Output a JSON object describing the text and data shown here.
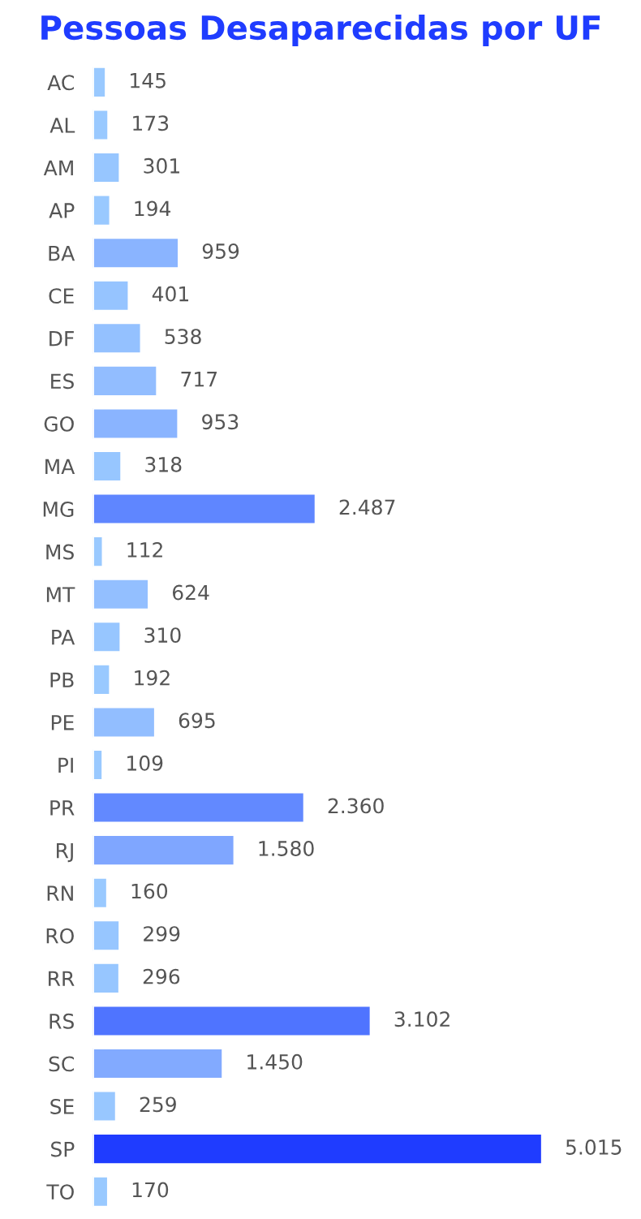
{
  "chart_data": {
    "type": "bar",
    "orientation": "horizontal",
    "title": "Pessoas Desaparecidas por UF",
    "categories": [
      "AC",
      "AL",
      "AM",
      "AP",
      "BA",
      "CE",
      "DF",
      "ES",
      "GO",
      "MA",
      "MG",
      "MS",
      "MT",
      "PA",
      "PB",
      "PE",
      "PI",
      "PR",
      "RJ",
      "RN",
      "RO",
      "RR",
      "RS",
      "SC",
      "SE",
      "SP",
      "TO"
    ],
    "values": [
      145,
      173,
      301,
      194,
      959,
      401,
      538,
      717,
      953,
      318,
      2487,
      112,
      624,
      310,
      192,
      695,
      109,
      2360,
      1580,
      160,
      299,
      296,
      3102,
      1450,
      259,
      5015,
      170
    ],
    "value_labels": [
      "145",
      "173",
      "301",
      "194",
      "959",
      "401",
      "538",
      "717",
      "953",
      "318",
      "2.487",
      "112",
      "624",
      "310",
      "192",
      "695",
      "109",
      "2.360",
      "1.580",
      "160",
      "299",
      "296",
      "3.102",
      "1.450",
      "259",
      "5.015",
      "170"
    ],
    "colors": [
      "#99c9ff",
      "#99c9ff",
      "#97c6ff",
      "#99c9ff",
      "#8ab4ff",
      "#96c4ff",
      "#94c1ff",
      "#92bdff",
      "#8ab4ff",
      "#97c6ff",
      "#5f86ff",
      "#99c9ff",
      "#93bfff",
      "#97c6ff",
      "#99c9ff",
      "#92beff",
      "#99c9ff",
      "#6289ff",
      "#7fa6ff",
      "#99c9ff",
      "#97c6ff",
      "#97c6ff",
      "#4f74ff",
      "#82aaff",
      "#98c7ff",
      "#1f3cff",
      "#99c9ff"
    ],
    "grid": false,
    "legend": false
  }
}
